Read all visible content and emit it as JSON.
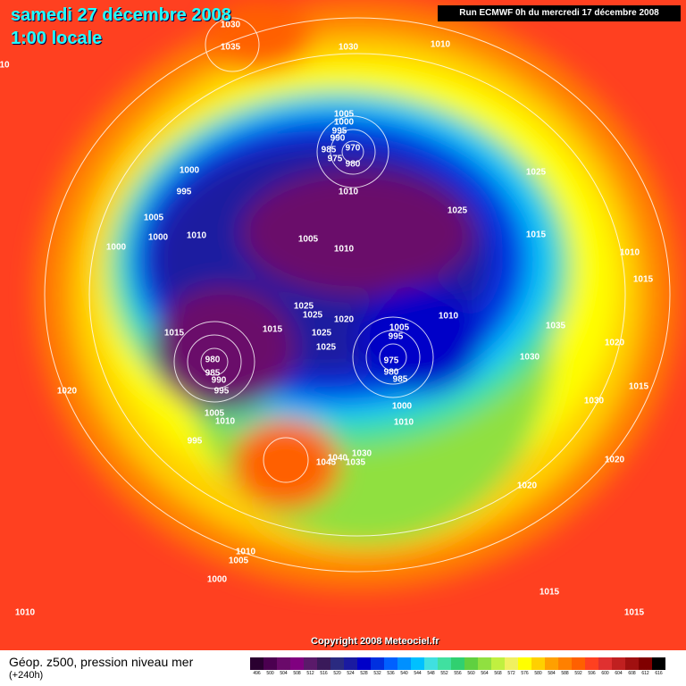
{
  "header": {
    "date": "samedi 27 décembre 2008",
    "time": "1:00 locale",
    "run": "Run ECMWF 0h du mercredi 17 décembre 2008"
  },
  "isobar_labels": [
    "1030",
    "1035",
    "10",
    "1030",
    "1010",
    "1005",
    "1000",
    "995",
    "990",
    "985",
    "970",
    "975",
    "980",
    "1000",
    "995",
    "1010",
    "1025",
    "1025",
    "1005",
    "1000",
    "1010",
    "1005",
    "1000",
    "1010",
    "1015",
    "1010",
    "1015",
    "1025",
    "1025",
    "1020",
    "1005",
    "995",
    "1010",
    "1035",
    "1015",
    "1015",
    "1025",
    "1025",
    "1020",
    "980",
    "985",
    "990",
    "995",
    "975",
    "980",
    "985",
    "1030",
    "1015",
    "1020",
    "1000",
    "1010",
    "1030",
    "1005",
    "1010",
    "995",
    "1030",
    "1040",
    "1035",
    "1045",
    "1020",
    "1020",
    "1010",
    "1005",
    "1000",
    "1015",
    "1015",
    "1010"
  ],
  "copyright": "Copyright 2008 Meteociel.fr",
  "legend": {
    "title": "Géop. z500, pression niveau mer",
    "lead": "(+240h)",
    "scale": [
      {
        "label": "496",
        "color": "#2a0030"
      },
      {
        "label": "500",
        "color": "#4b0050"
      },
      {
        "label": "504",
        "color": "#6a0a6a"
      },
      {
        "label": "508",
        "color": "#800080"
      },
      {
        "label": "512",
        "color": "#5a1a6a"
      },
      {
        "label": "516",
        "color": "#3a1a5a"
      },
      {
        "label": "520",
        "color": "#2a2a80"
      },
      {
        "label": "524",
        "color": "#1a1aa0"
      },
      {
        "label": "528",
        "color": "#0000c8"
      },
      {
        "label": "532",
        "color": "#0030e0"
      },
      {
        "label": "536",
        "color": "#0060ff"
      },
      {
        "label": "540",
        "color": "#0090ff"
      },
      {
        "label": "544",
        "color": "#00c0ff"
      },
      {
        "label": "548",
        "color": "#40e0e0"
      },
      {
        "label": "552",
        "color": "#40e0a0"
      },
      {
        "label": "556",
        "color": "#30d070"
      },
      {
        "label": "560",
        "color": "#60d040"
      },
      {
        "label": "564",
        "color": "#90e040"
      },
      {
        "label": "568",
        "color": "#c0f040"
      },
      {
        "label": "572",
        "color": "#f0f060"
      },
      {
        "label": "576",
        "color": "#ffff00"
      },
      {
        "label": "580",
        "color": "#ffd000"
      },
      {
        "label": "584",
        "color": "#ffa000"
      },
      {
        "label": "588",
        "color": "#ff8000"
      },
      {
        "label": "592",
        "color": "#ff6000"
      },
      {
        "label": "596",
        "color": "#ff4020"
      },
      {
        "label": "600",
        "color": "#e03030"
      },
      {
        "label": "604",
        "color": "#c02020"
      },
      {
        "label": "608",
        "color": "#a01010"
      },
      {
        "label": "612",
        "color": "#800000"
      },
      {
        "label": "616",
        "color": "#000000"
      }
    ]
  }
}
